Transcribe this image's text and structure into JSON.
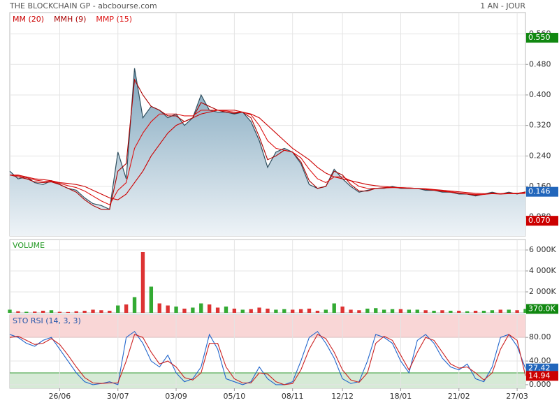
{
  "header": {
    "title": "THE BLOCKCHAIN GP - abcbourse.com",
    "period": "1 AN - JOUR"
  },
  "chart_data": [
    {
      "type": "line",
      "area": true,
      "ylim": [
        0.03,
        0.616
      ],
      "yticks": [
        {
          "value": 0.08,
          "label": "0.080"
        },
        {
          "value": 0.16,
          "label": "0.160"
        },
        {
          "value": 0.24,
          "label": "0.240"
        },
        {
          "value": 0.32,
          "label": "0.320"
        },
        {
          "value": 0.4,
          "label": "0.400"
        },
        {
          "value": 0.48,
          "label": "0.480"
        },
        {
          "value": 0.56,
          "label": "0.560"
        }
      ],
      "grid": true,
      "price": {
        "color": "#2f4f5f",
        "fill": "#7fa6bd",
        "values": [
          0.2,
          0.18,
          0.185,
          0.17,
          0.165,
          0.175,
          0.165,
          0.155,
          0.15,
          0.13,
          0.115,
          0.11,
          0.1,
          0.25,
          0.18,
          0.47,
          0.34,
          0.37,
          0.36,
          0.34,
          0.35,
          0.32,
          0.34,
          0.4,
          0.36,
          0.355,
          0.355,
          0.35,
          0.355,
          0.33,
          0.28,
          0.21,
          0.25,
          0.26,
          0.25,
          0.22,
          0.165,
          0.155,
          0.16,
          0.205,
          0.18,
          0.16,
          0.145,
          0.15,
          0.155,
          0.155,
          0.16,
          0.155,
          0.155,
          0.155,
          0.15,
          0.15,
          0.145,
          0.145,
          0.14,
          0.14,
          0.135,
          0.14,
          0.145,
          0.14,
          0.145,
          0.14,
          0.146
        ]
      },
      "series": [
        {
          "name": "MM (20)",
          "color": "#cc0000",
          "values": [
            0.19,
            0.19,
            0.185,
            0.18,
            0.178,
            0.175,
            0.17,
            0.168,
            0.165,
            0.16,
            0.15,
            0.14,
            0.13,
            0.125,
            0.14,
            0.17,
            0.2,
            0.24,
            0.27,
            0.3,
            0.32,
            0.33,
            0.34,
            0.35,
            0.355,
            0.36,
            0.36,
            0.36,
            0.355,
            0.35,
            0.34,
            0.32,
            0.3,
            0.28,
            0.26,
            0.245,
            0.23,
            0.21,
            0.195,
            0.185,
            0.18,
            0.175,
            0.17,
            0.165,
            0.162,
            0.16,
            0.158,
            0.157,
            0.156,
            0.155,
            0.154,
            0.152,
            0.15,
            0.148,
            0.146,
            0.144,
            0.142,
            0.141,
            0.141,
            0.14,
            0.141,
            0.141,
            0.142
          ]
        },
        {
          "name": "MMH (9)",
          "color": "#aa0000",
          "values": [
            0.19,
            0.185,
            0.18,
            0.172,
            0.17,
            0.172,
            0.165,
            0.155,
            0.145,
            0.125,
            0.11,
            0.1,
            0.1,
            0.2,
            0.22,
            0.44,
            0.4,
            0.37,
            0.36,
            0.345,
            0.345,
            0.33,
            0.34,
            0.38,
            0.37,
            0.36,
            0.355,
            0.352,
            0.355,
            0.34,
            0.29,
            0.23,
            0.24,
            0.255,
            0.25,
            0.225,
            0.175,
            0.155,
            0.16,
            0.2,
            0.19,
            0.165,
            0.148,
            0.148,
            0.155,
            0.157,
            0.158,
            0.156,
            0.155,
            0.155,
            0.152,
            0.15,
            0.147,
            0.145,
            0.142,
            0.14,
            0.137,
            0.139,
            0.143,
            0.141,
            0.143,
            0.142,
            0.145
          ]
        },
        {
          "name": "MMP (15)",
          "color": "#dd1111",
          "values": [
            0.19,
            0.188,
            0.183,
            0.177,
            0.174,
            0.173,
            0.168,
            0.162,
            0.157,
            0.148,
            0.135,
            0.122,
            0.112,
            0.15,
            0.17,
            0.26,
            0.3,
            0.33,
            0.35,
            0.35,
            0.35,
            0.345,
            0.345,
            0.36,
            0.36,
            0.36,
            0.358,
            0.355,
            0.355,
            0.348,
            0.32,
            0.28,
            0.26,
            0.255,
            0.25,
            0.235,
            0.205,
            0.18,
            0.17,
            0.185,
            0.185,
            0.175,
            0.16,
            0.155,
            0.155,
            0.156,
            0.157,
            0.157,
            0.156,
            0.155,
            0.153,
            0.151,
            0.148,
            0.146,
            0.143,
            0.141,
            0.139,
            0.139,
            0.141,
            0.141,
            0.142,
            0.142,
            0.144
          ]
        }
      ],
      "markers": [
        {
          "value": 0.55,
          "label": "0.550",
          "color": "#118811"
        },
        {
          "value": 0.146,
          "label": "0.146",
          "color": "#2266bb"
        },
        {
          "value": 0.07,
          "label": "0.070",
          "color": "#cc0000"
        }
      ]
    },
    {
      "type": "bar",
      "title": "VOLUME",
      "ylim": [
        0,
        7000
      ],
      "yticks": [
        {
          "value": 2000,
          "label": "2 000K"
        },
        {
          "value": 4000,
          "label": "4 000K"
        },
        {
          "value": 6000,
          "label": "6 000K"
        }
      ],
      "grid": true,
      "up_color": "#33aa33",
      "down_color": "#dd3333",
      "values": [
        300,
        150,
        100,
        120,
        200,
        250,
        100,
        80,
        150,
        200,
        300,
        250,
        200,
        700,
        800,
        1500,
        5800,
        2500,
        900,
        700,
        600,
        400,
        500,
        900,
        800,
        500,
        600,
        400,
        300,
        350,
        500,
        400,
        300,
        350,
        300,
        350,
        400,
        200,
        300,
        900,
        600,
        300,
        250,
        400,
        450,
        300,
        350,
        350,
        300,
        300,
        250,
        200,
        250,
        200,
        200,
        150,
        200,
        200,
        250,
        300,
        300,
        250,
        370
      ],
      "markers": [
        {
          "value": 370,
          "label": "370.0K",
          "color": "#118811"
        }
      ]
    },
    {
      "type": "line",
      "title": "STO RSI (14, 3, 3)",
      "ylim": [
        -6,
        118
      ],
      "yticks": [
        {
          "value": 0,
          "label": "0.000"
        },
        {
          "value": 40,
          "label": "40.00"
        },
        {
          "value": 80,
          "label": "80.00"
        }
      ],
      "grid": true,
      "bands": [
        {
          "range": [
            80,
            118
          ],
          "color": "#f9d6d6",
          "line": "#cc3333"
        },
        {
          "range": [
            -6,
            20
          ],
          "color": "#d6ead6",
          "line": "#339933"
        }
      ],
      "categories": [
        null,
        null,
        null,
        null,
        null,
        null,
        "26/06",
        null,
        null,
        null,
        null,
        null,
        null,
        "30/07",
        null,
        null,
        null,
        null,
        null,
        null,
        "03/09",
        null,
        null,
        null,
        null,
        null,
        null,
        "05/10",
        null,
        null,
        null,
        null,
        null,
        null,
        "08/11",
        null,
        null,
        null,
        null,
        null,
        "12/12",
        null,
        null,
        null,
        null,
        null,
        null,
        "18/01",
        null,
        null,
        null,
        null,
        null,
        null,
        "21/02",
        null,
        null,
        null,
        null,
        null,
        null,
        "27/03",
        null
      ],
      "series": [
        {
          "color": "#2266cc",
          "values": [
            85,
            80,
            70,
            65,
            75,
            80,
            60,
            40,
            20,
            5,
            0,
            2,
            5,
            0,
            80,
            90,
            70,
            40,
            30,
            50,
            20,
            5,
            10,
            30,
            85,
            60,
            10,
            5,
            0,
            5,
            30,
            10,
            0,
            0,
            5,
            40,
            80,
            90,
            70,
            45,
            10,
            2,
            5,
            40,
            85,
            80,
            70,
            40,
            20,
            75,
            85,
            70,
            45,
            30,
            25,
            35,
            10,
            5,
            30,
            80,
            85,
            65,
            27.42
          ]
        },
        {
          "color": "#cc2222",
          "values": [
            80,
            82,
            75,
            68,
            70,
            78,
            68,
            50,
            30,
            12,
            3,
            2,
            3,
            3,
            40,
            85,
            80,
            55,
            35,
            40,
            30,
            12,
            8,
            20,
            70,
            70,
            30,
            10,
            3,
            3,
            20,
            18,
            5,
            0,
            2,
            25,
            60,
            85,
            78,
            55,
            25,
            8,
            4,
            20,
            70,
            82,
            75,
            50,
            25,
            55,
            80,
            75,
            55,
            35,
            28,
            30,
            20,
            8,
            20,
            60,
            85,
            75,
            14.94
          ]
        }
      ],
      "markers": [
        {
          "value": 27.42,
          "label": "27.42",
          "color": "#2266bb"
        },
        {
          "value": 14.94,
          "label": "14.94",
          "color": "#cc0000"
        }
      ]
    }
  ]
}
